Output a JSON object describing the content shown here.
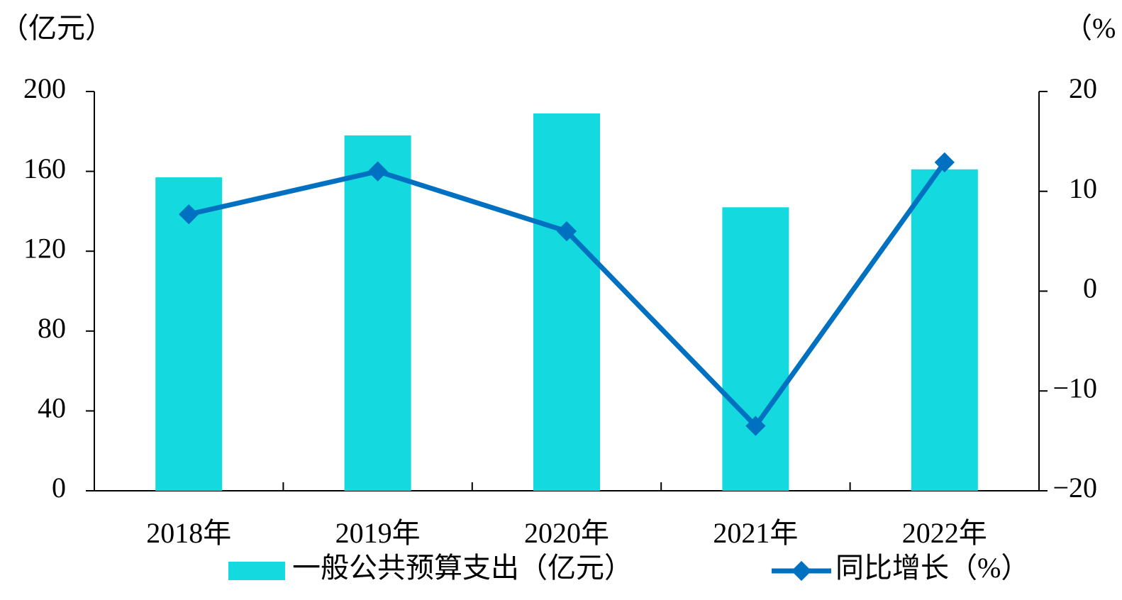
{
  "chart_data": {
    "type": "bar",
    "y_unit_label": "（亿元）",
    "y2_unit_label": "（%",
    "categories": [
      "2018年",
      "2019年",
      "2020年",
      "2021年",
      "2022年"
    ],
    "series": [
      {
        "name": "一般公共预算支出（亿元）",
        "type": "bar",
        "color": "#14d9df",
        "values": [
          157,
          178,
          189,
          142,
          161
        ]
      },
      {
        "name": "同比增长（%）",
        "type": "line",
        "color": "#0070c0",
        "axis": "y2",
        "values": [
          7.7,
          12.0,
          6.0,
          -13.5,
          12.9
        ]
      }
    ],
    "ylim": [
      0,
      200
    ],
    "yticks": [
      0,
      40,
      80,
      120,
      160,
      200
    ],
    "y2lim": [
      -20,
      20
    ],
    "y2ticks": [
      {
        "value": -20,
        "label": "−20"
      },
      {
        "value": -10,
        "label": "−10"
      },
      0,
      10,
      20
    ],
    "grid": false
  }
}
